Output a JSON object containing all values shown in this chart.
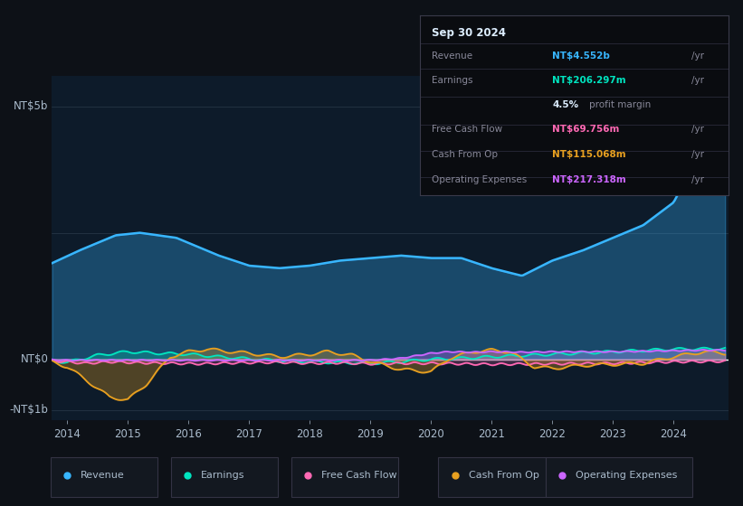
{
  "bg_color": "#0d1117",
  "plot_bg_color": "#0d1b2a",
  "y_label_top": "NT$5b",
  "y_label_zero": "NT$0",
  "y_label_neg": "-NT$1b",
  "x_ticks": [
    "2014",
    "2015",
    "2016",
    "2017",
    "2018",
    "2019",
    "2020",
    "2021",
    "2022",
    "2023",
    "2024"
  ],
  "colors": {
    "revenue": "#38b6ff",
    "earnings": "#00e5c0",
    "free_cash_flow": "#ff69b4",
    "cash_from_op": "#e8a020",
    "operating_expenses": "#cc66ff"
  },
  "tooltip": {
    "date": "Sep 30 2024",
    "revenue_val": "NT$4.552b",
    "earnings_val": "NT$206.297m",
    "profit_margin": "4.5%",
    "fcf_val": "NT$69.756m",
    "cash_from_op_val": "NT$115.068m",
    "op_exp_val": "NT$217.318m"
  },
  "legend": [
    {
      "label": "Revenue",
      "color": "#38b6ff"
    },
    {
      "label": "Earnings",
      "color": "#00e5c0"
    },
    {
      "label": "Free Cash Flow",
      "color": "#ff69b4"
    },
    {
      "label": "Cash From Op",
      "color": "#e8a020"
    },
    {
      "label": "Operating Expenses",
      "color": "#cc66ff"
    }
  ]
}
